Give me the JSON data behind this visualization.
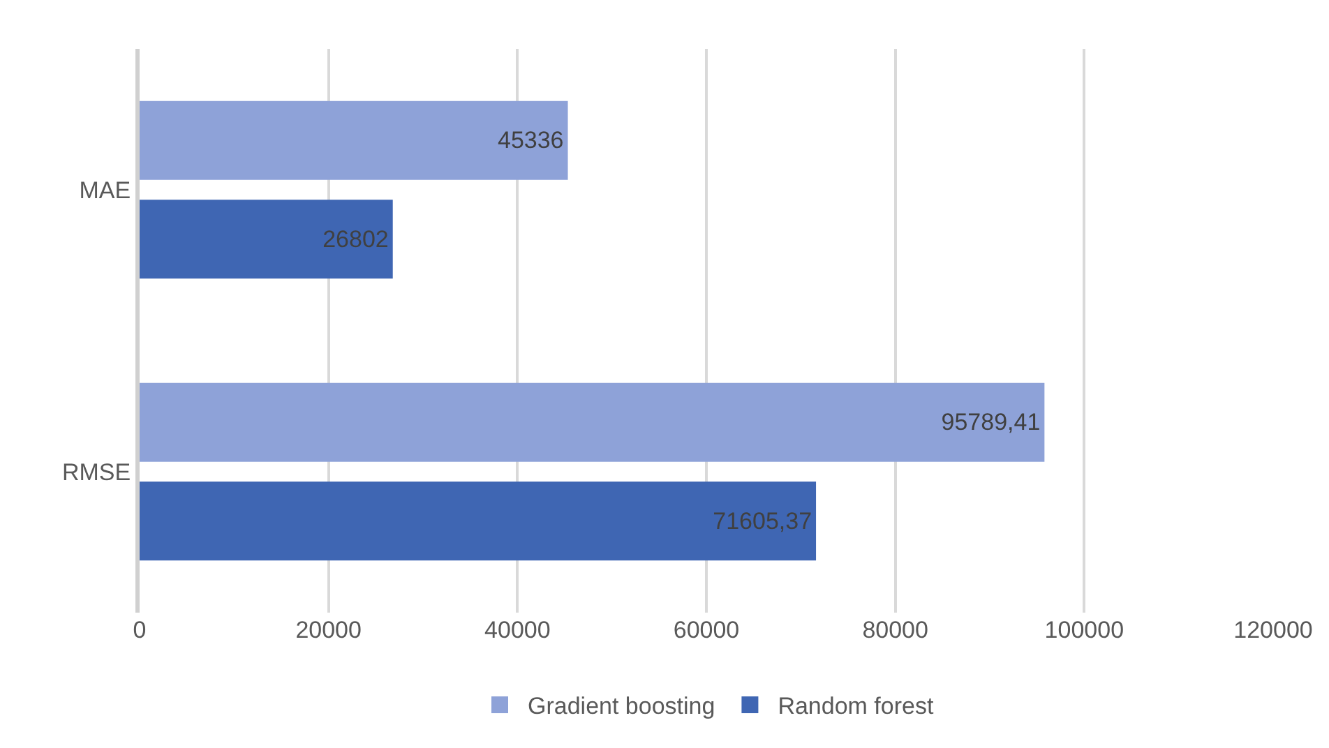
{
  "chart_data": {
    "type": "bar",
    "orientation": "horizontal",
    "categories": [
      "MAE",
      "RMSE"
    ],
    "series": [
      {
        "name": "Gradient boosting",
        "color": "#8ea2d8",
        "values": [
          45336,
          95789.41
        ],
        "value_labels": [
          "45336",
          "95789,41"
        ]
      },
      {
        "name": "Random forest",
        "color": "#3f66b3",
        "values": [
          26802,
          71605.37
        ],
        "value_labels": [
          "26802",
          "71605,37"
        ]
      }
    ],
    "xlim": [
      0,
      120000
    ],
    "xticks": [
      0,
      20000,
      40000,
      60000,
      80000,
      100000,
      120000
    ],
    "grid": "x",
    "legend": "bottom"
  }
}
